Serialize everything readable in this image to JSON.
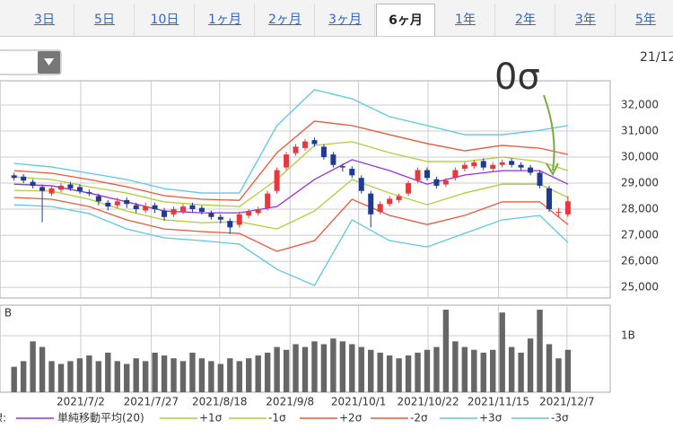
{
  "tabs": [
    "3日",
    "5日",
    "10日",
    "1ヶ月",
    "2ヶ月",
    "3ヶ月",
    "6ヶ月",
    "1年",
    "2年",
    "3年",
    "5年"
  ],
  "active_tab": 6,
  "date_label": "21/12",
  "chart_data": {
    "type": "candlestick",
    "open": [
      29300,
      29250,
      29050,
      28850,
      28600,
      28750,
      28950,
      28850,
      28650,
      28500,
      28250,
      28150,
      28350,
      28150,
      27950,
      28150,
      27950,
      27800,
      27900,
      28150,
      28050,
      27850,
      27700,
      27550,
      27400,
      27750,
      27850,
      28050,
      28700,
      29600,
      30150,
      30350,
      30650,
      30400,
      30100,
      29650,
      29550,
      29200,
      28600,
      27900,
      28200,
      28350,
      28600,
      29100,
      29500,
      29150,
      28950,
      29200,
      29550,
      29650,
      29850,
      29550,
      29700,
      29850,
      29700,
      29600,
      29400,
      28800,
      27900,
      27800
    ],
    "high": [
      29400,
      29350,
      29150,
      28950,
      28900,
      29000,
      29050,
      28950,
      28750,
      28600,
      28350,
      28450,
      28450,
      28250,
      28250,
      28250,
      28050,
      28100,
      28200,
      28250,
      28150,
      27950,
      27800,
      27650,
      27900,
      28000,
      28100,
      28700,
      29600,
      30200,
      30500,
      30700,
      30750,
      30500,
      30200,
      29750,
      29650,
      29300,
      28700,
      28300,
      28500,
      28600,
      29100,
      29600,
      29600,
      29250,
      29200,
      29600,
      29800,
      29900,
      29950,
      29800,
      29900,
      29950,
      29800,
      29700,
      29500,
      28900,
      28050,
      28500
    ],
    "low": [
      29100,
      29000,
      28800,
      27500,
      28500,
      28650,
      28700,
      28600,
      28500,
      28150,
      27950,
      28050,
      28050,
      27850,
      27850,
      27850,
      27550,
      27700,
      27800,
      27900,
      27800,
      27600,
      27450,
      27050,
      27300,
      27650,
      27750,
      27950,
      28600,
      29500,
      30050,
      30250,
      30400,
      29900,
      29600,
      29450,
      29200,
      28600,
      27300,
      27800,
      28100,
      28250,
      28500,
      29000,
      29100,
      28800,
      28850,
      29100,
      29450,
      29550,
      29500,
      29450,
      29600,
      29600,
      29500,
      29300,
      28800,
      27900,
      27700,
      27700
    ],
    "close": [
      29200,
      29100,
      28900,
      28700,
      28800,
      28900,
      28800,
      28700,
      28600,
      28300,
      28100,
      28300,
      28200,
      28000,
      28100,
      28000,
      27700,
      28000,
      28100,
      28000,
      27900,
      27700,
      27600,
      27300,
      27800,
      27900,
      28000,
      28600,
      29500,
      30100,
      30400,
      30600,
      30500,
      30000,
      29700,
      29600,
      29300,
      28700,
      27800,
      28200,
      28400,
      28500,
      29000,
      29500,
      29200,
      28900,
      29100,
      29500,
      29700,
      29800,
      29600,
      29700,
      29800,
      29700,
      29600,
      29400,
      28900,
      28000,
      27900,
      28300
    ],
    "up_color": "#e8383d",
    "down_color": "#1f3a93",
    "xlim": [
      -1.5,
      63.5
    ],
    "xticks": [
      {
        "value": 7.1,
        "label": "2021/7/2"
      },
      {
        "value": 14.6,
        "label": "2021/7/27"
      },
      {
        "value": 21.9,
        "label": "2021/8/18"
      },
      {
        "value": 29.4,
        "label": "2021/9/8"
      },
      {
        "value": 36.7,
        "label": "2021/10/1"
      },
      {
        "value": 44.1,
        "label": "2021/10/22"
      },
      {
        "value": 51.6,
        "label": "2021/11/15"
      },
      {
        "value": 58.9,
        "label": "2021/12/7"
      }
    ],
    "ylim": [
      24590,
      32930
    ],
    "yticks": [
      {
        "value": 25000,
        "label": "25,000"
      },
      {
        "value": 26000,
        "label": "26,000"
      },
      {
        "value": 27000,
        "label": "27,000"
      },
      {
        "value": 28000,
        "label": "28,000"
      },
      {
        "value": 29000,
        "label": "29,000"
      },
      {
        "value": 30000,
        "label": "30,000"
      },
      {
        "value": 31000,
        "label": "31,000"
      },
      {
        "value": 32000,
        "label": "32,000"
      }
    ],
    "grid": true,
    "legend_label": "線:",
    "series_x": [
      0,
      4,
      8,
      12,
      16,
      20,
      24,
      28,
      32,
      36,
      40,
      44,
      48,
      52,
      56,
      59
    ],
    "series": [
      {
        "name": "単純移動平均(20)",
        "color": "#9b30d9",
        "values": [
          28960,
          28900,
          28620,
          28280,
          27930,
          27860,
          27860,
          28100,
          29140,
          29900,
          29480,
          28960,
          29310,
          29480,
          29480,
          28960
        ]
      },
      {
        "name": "+1σ",
        "color": "#b5cc3a",
        "values": [
          29240,
          29140,
          28860,
          28620,
          28280,
          28170,
          28100,
          29140,
          30450,
          30590,
          30170,
          29830,
          29830,
          30000,
          29830,
          29480
        ]
      },
      {
        "name": "-1σ",
        "color": "#b5cc3a",
        "values": [
          28720,
          28690,
          28380,
          27930,
          27590,
          27480,
          27520,
          27240,
          27930,
          29140,
          28620,
          28170,
          28620,
          28960,
          28960,
          28450
        ]
      },
      {
        "name": "+2σ",
        "color": "#e85a3a",
        "values": [
          29480,
          29380,
          29140,
          28860,
          28520,
          28380,
          28340,
          30170,
          31380,
          31210,
          30860,
          30520,
          30240,
          30450,
          30340,
          30100
        ]
      },
      {
        "name": "-2σ",
        "color": "#e85a3a",
        "values": [
          28450,
          28380,
          28100,
          27590,
          27240,
          27140,
          27070,
          26380,
          26790,
          28380,
          27760,
          27410,
          27760,
          28280,
          28280,
          27410
        ]
      },
      {
        "name": "+3σ",
        "color": "#5cc8e0",
        "values": [
          29760,
          29620,
          29380,
          29140,
          28790,
          28620,
          28620,
          31210,
          32590,
          32240,
          31550,
          31210,
          30860,
          30860,
          31030,
          31210
        ]
      },
      {
        "name": "-3σ",
        "color": "#5cc8e0",
        "values": [
          28170,
          28100,
          27830,
          27240,
          26900,
          26790,
          26660,
          25690,
          25070,
          27590,
          26790,
          26550,
          27070,
          27590,
          27760,
          26720
        ]
      }
    ],
    "annotation": {
      "text": "0σ",
      "color": "#7aab3c"
    },
    "volume": {
      "type": "bar",
      "unit_label": ": B",
      "color": "#666666",
      "ylim": [
        0,
        1.54
      ],
      "yticks": [
        {
          "value": 1,
          "label": "1B"
        }
      ],
      "values": [
        0.45,
        0.55,
        0.9,
        0.8,
        0.55,
        0.5,
        0.55,
        0.6,
        0.65,
        0.55,
        0.7,
        0.55,
        0.5,
        0.6,
        0.55,
        0.7,
        0.65,
        0.6,
        0.55,
        0.7,
        0.6,
        0.55,
        0.5,
        0.6,
        0.55,
        0.6,
        0.65,
        0.7,
        0.8,
        0.75,
        0.85,
        0.8,
        0.9,
        0.85,
        0.95,
        0.9,
        0.85,
        0.8,
        0.75,
        0.7,
        0.65,
        0.6,
        0.65,
        0.7,
        0.75,
        0.8,
        1.46,
        0.9,
        0.8,
        0.75,
        0.7,
        0.75,
        1.41,
        0.8,
        0.7,
        0.95,
        1.46,
        0.85,
        0.6,
        0.75
      ]
    }
  }
}
